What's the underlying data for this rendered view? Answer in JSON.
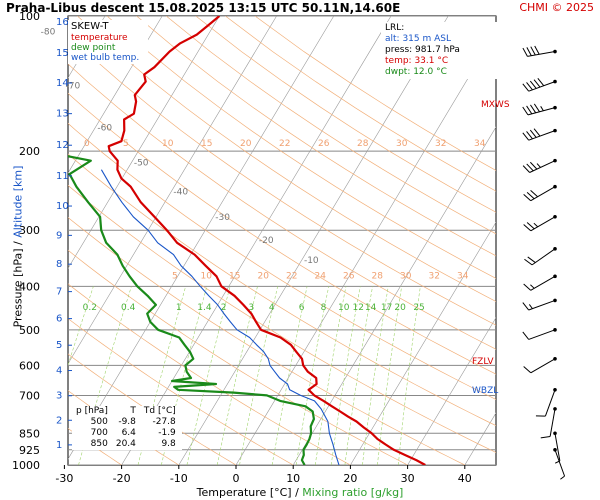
{
  "title": "Praha-Libus   descent   15.08.2025 13:15 UTC   50.11N,14.60E",
  "credit": "CHMI © 2025",
  "legend": {
    "header": "SKEW-T",
    "items": [
      {
        "label": "temperature",
        "color": "#d40000"
      },
      {
        "label": "dew point",
        "color": "#1a8a1a"
      },
      {
        "label": "wet bulb temp.",
        "color": "#1a56c8"
      }
    ]
  },
  "lrl": {
    "header": "LRL:",
    "alt": "alt: 315 m ASL",
    "press": "press: 981.7 hPa",
    "temp": "temp: 33.1 °C",
    "dwpt": "dwpt: 12.0 °C"
  },
  "level_markers": {
    "mxws": "MXWS",
    "fzlv": "FZLV",
    "wbzl": "WBZL"
  },
  "table": {
    "headers": [
      "p [hPa]",
      "T",
      "Td [°C]"
    ],
    "rows": [
      [
        "500",
        "-9.8",
        "-27.8"
      ],
      [
        "700",
        "6.4",
        "-1.9"
      ],
      [
        "850",
        "20.4",
        "9.8"
      ]
    ]
  },
  "axes": {
    "x_label_main": "Temperature [°C]",
    "x_label_sep": " / ",
    "x_label_mix": "Mixing ratio [g/kg]",
    "y_label_main": "Pressure [hPa]",
    "y_label_sep": " / ",
    "y_label_alt": "Altitude [km]"
  },
  "chart_data": {
    "type": "line",
    "subtype": "skew-T log-p",
    "x_ticks": [
      -30,
      -20,
      -10,
      0,
      10,
      20,
      30,
      40
    ],
    "p_ticks": [
      100,
      200,
      300,
      400,
      500,
      600,
      700,
      850,
      925,
      1000
    ],
    "alt_ticks": [
      {
        "km": 1,
        "p": 902
      },
      {
        "km": 2,
        "p": 795
      },
      {
        "km": 3,
        "p": 701
      },
      {
        "km": 4,
        "p": 616
      },
      {
        "km": 5,
        "p": 541
      },
      {
        "km": 6,
        "p": 472
      },
      {
        "km": 7,
        "p": 411
      },
      {
        "km": 8,
        "p": 357
      },
      {
        "km": 9,
        "p": 308
      },
      {
        "km": 10,
        "p": 265
      },
      {
        "km": 11,
        "p": 227
      },
      {
        "km": 12,
        "p": 194
      },
      {
        "km": 13,
        "p": 165
      },
      {
        "km": 14,
        "p": 141
      },
      {
        "km": 15,
        "p": 121
      },
      {
        "km": 16,
        "p": 103
      }
    ],
    "ylim": [
      100,
      1000
    ],
    "xlim": [
      -40,
      50
    ],
    "isotherm_labels_upper": [
      -80,
      -70,
      -60,
      -50,
      -40,
      -30,
      -20,
      -10
    ],
    "mixing_ratio_labels": [
      "0.2",
      "0.4",
      "1",
      "1.4",
      "2",
      "3",
      "4",
      "6",
      "8",
      "10",
      "12",
      "14",
      "17",
      "20",
      "25"
    ],
    "adiabat_labels_200": [
      "0",
      "5",
      "10",
      "15",
      "20",
      "22",
      "26",
      "28",
      "30",
      "32",
      "34"
    ],
    "adiabat_labels_380": [
      "5",
      "10",
      "15",
      "20",
      "22",
      "24",
      "26",
      "28",
      "30",
      "32",
      "34"
    ],
    "series": [
      {
        "name": "temperature",
        "color": "#d40000",
        "points": [
          [
            1000,
            33.1
          ],
          [
            975,
            31.0
          ],
          [
            950,
            28.5
          ],
          [
            925,
            26.0
          ],
          [
            900,
            24.0
          ],
          [
            875,
            22.0
          ],
          [
            850,
            20.4
          ],
          [
            825,
            18.4
          ],
          [
            800,
            16.5
          ],
          [
            780,
            14.5
          ],
          [
            760,
            12.6
          ],
          [
            740,
            10.6
          ],
          [
            720,
            8.6
          ],
          [
            700,
            6.4
          ],
          [
            680,
            4.8
          ],
          [
            660,
            5.6
          ],
          [
            640,
            4.9
          ],
          [
            620,
            2.8
          ],
          [
            600,
            1.3
          ],
          [
            580,
            0.4
          ],
          [
            560,
            -1.3
          ],
          [
            540,
            -3.0
          ],
          [
            520,
            -5.6
          ],
          [
            500,
            -9.8
          ],
          [
            480,
            -11.5
          ],
          [
            460,
            -13.2
          ],
          [
            440,
            -15.5
          ],
          [
            420,
            -18.0
          ],
          [
            400,
            -21.3
          ],
          [
            380,
            -23.2
          ],
          [
            360,
            -26.2
          ],
          [
            340,
            -29.3
          ],
          [
            320,
            -33.6
          ],
          [
            300,
            -36.7
          ],
          [
            280,
            -40.3
          ],
          [
            260,
            -44.2
          ],
          [
            240,
            -47.6
          ],
          [
            230,
            -50.1
          ],
          [
            220,
            -51.7
          ],
          [
            210,
            -52.6
          ],
          [
            200,
            -55.0
          ],
          [
            195,
            -55.7
          ],
          [
            190,
            -54.0
          ],
          [
            180,
            -54.6
          ],
          [
            170,
            -55.8
          ],
          [
            165,
            -54.7
          ],
          [
            155,
            -55.6
          ],
          [
            150,
            -56.5
          ],
          [
            140,
            -56.0
          ],
          [
            135,
            -57.0
          ],
          [
            130,
            -56.0
          ],
          [
            120,
            -55.0
          ],
          [
            115,
            -54.0
          ],
          [
            110,
            -52.0
          ],
          [
            105,
            -51.0
          ],
          [
            100,
            -50.0
          ]
        ]
      },
      {
        "name": "dew point",
        "color": "#1a8a1a",
        "points": [
          [
            1000,
            12.0
          ],
          [
            975,
            11.0
          ],
          [
            950,
            10.8
          ],
          [
            925,
            10.2
          ],
          [
            900,
            10.2
          ],
          [
            875,
            10.1
          ],
          [
            850,
            9.8
          ],
          [
            820,
            9.0
          ],
          [
            790,
            8.8
          ],
          [
            760,
            7.8
          ],
          [
            740,
            6.0
          ],
          [
            720,
            1.0
          ],
          [
            700,
            -1.9
          ],
          [
            690,
            -8.0
          ],
          [
            680,
            -18.0
          ],
          [
            670,
            -19.0
          ],
          [
            660,
            -12.0
          ],
          [
            650,
            -20.0
          ],
          [
            640,
            -17.0
          ],
          [
            620,
            -18.4
          ],
          [
            600,
            -19.3
          ],
          [
            580,
            -18.6
          ],
          [
            560,
            -19.9
          ],
          [
            540,
            -21.6
          ],
          [
            520,
            -23.3
          ],
          [
            500,
            -27.8
          ],
          [
            480,
            -30.0
          ],
          [
            460,
            -31.4
          ],
          [
            440,
            -30.8
          ],
          [
            420,
            -33.2
          ],
          [
            400,
            -36.0
          ],
          [
            380,
            -38.4
          ],
          [
            360,
            -40.7
          ],
          [
            340,
            -42.8
          ],
          [
            320,
            -46.0
          ],
          [
            300,
            -48.2
          ],
          [
            280,
            -49.8
          ],
          [
            260,
            -53.4
          ],
          [
            240,
            -57.1
          ],
          [
            225,
            -59.6
          ],
          [
            210,
            -57.3
          ],
          [
            200,
            -66.8
          ],
          [
            195,
            -70.4
          ],
          [
            190,
            -66.8
          ],
          [
            180,
            -69.0
          ],
          [
            170,
            -74.8
          ],
          [
            160,
            -77.6
          ],
          [
            150,
            -81.2
          ],
          [
            140,
            -82.2
          ],
          [
            130,
            -83.9
          ],
          [
            120,
            -84.9
          ],
          [
            110,
            -87.3
          ],
          [
            100,
            -89.5
          ]
        ]
      },
      {
        "name": "wet bulb temp.",
        "color": "#1a56c8",
        "points": [
          [
            1000,
            18.0
          ],
          [
            950,
            16.4
          ],
          [
            900,
            14.8
          ],
          [
            850,
            13.0
          ],
          [
            800,
            11.5
          ],
          [
            750,
            9.0
          ],
          [
            720,
            7.0
          ],
          [
            700,
            4.0
          ],
          [
            680,
            1.5
          ],
          [
            660,
            0.5
          ],
          [
            640,
            -1.5
          ],
          [
            620,
            -3.0
          ],
          [
            600,
            -4.5
          ],
          [
            580,
            -5.5
          ],
          [
            560,
            -7.0
          ],
          [
            540,
            -9.0
          ],
          [
            520,
            -11.0
          ],
          [
            500,
            -14.0
          ],
          [
            480,
            -16.0
          ],
          [
            460,
            -18.0
          ],
          [
            440,
            -20.0
          ],
          [
            420,
            -22.5
          ],
          [
            400,
            -25.0
          ],
          [
            380,
            -27.5
          ],
          [
            360,
            -30.5
          ],
          [
            340,
            -33.0
          ],
          [
            320,
            -37.0
          ],
          [
            300,
            -40.0
          ],
          [
            280,
            -44.0
          ],
          [
            260,
            -47.5
          ],
          [
            240,
            -51.0
          ],
          [
            220,
            -54.5
          ]
        ]
      }
    ],
    "wind_barbs": [
      {
        "p": 120,
        "dir": 260,
        "kt": 40
      },
      {
        "p": 140,
        "dir": 250,
        "kt": 50
      },
      {
        "p": 160,
        "dir": 255,
        "kt": 45
      },
      {
        "p": 180,
        "dir": 250,
        "kt": 40
      },
      {
        "p": 210,
        "dir": 245,
        "kt": 35
      },
      {
        "p": 240,
        "dir": 240,
        "kt": 30
      },
      {
        "p": 280,
        "dir": 240,
        "kt": 25
      },
      {
        "p": 330,
        "dir": 235,
        "kt": 20
      },
      {
        "p": 380,
        "dir": 240,
        "kt": 15
      },
      {
        "p": 430,
        "dir": 250,
        "kt": 15
      },
      {
        "p": 500,
        "dir": 250,
        "kt": 10
      },
      {
        "p": 580,
        "dir": 240,
        "kt": 10
      },
      {
        "p": 680,
        "dir": 200,
        "kt": 10
      },
      {
        "p": 750,
        "dir": 190,
        "kt": 10
      },
      {
        "p": 850,
        "dir": 170,
        "kt": 5
      },
      {
        "p": 925,
        "dir": 160,
        "kt": 5
      }
    ]
  }
}
